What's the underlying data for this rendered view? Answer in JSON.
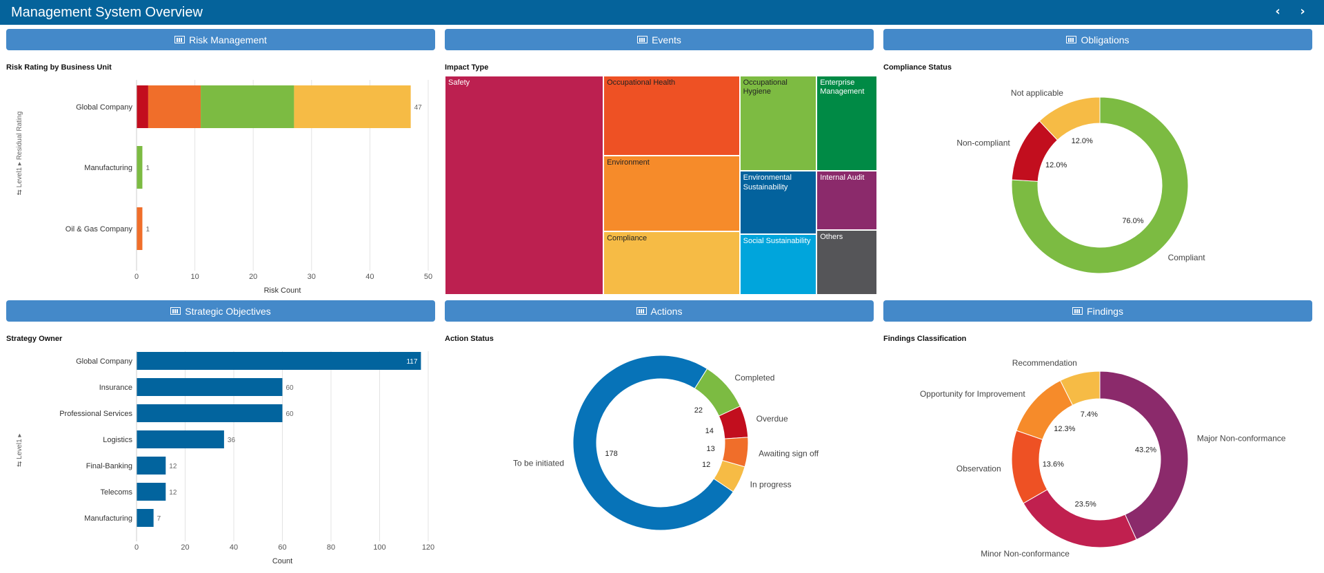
{
  "header": {
    "title": "Management System Overview",
    "prev_icon": "chevron-left",
    "next_icon": "chevron-right"
  },
  "colors": {
    "header": "#05639b",
    "button": "#4489c9"
  },
  "buttons": {
    "risk": "Risk Management",
    "events": "Events",
    "obligations": "Obligations",
    "strategic": "Strategic Objectives",
    "actions": "Actions",
    "findings": "Findings"
  },
  "chart_data": [
    {
      "id": "risk",
      "type": "bar",
      "orientation": "horizontal",
      "stacked": true,
      "title": "Risk Rating by Business Unit",
      "xlabel": "Risk Count",
      "ylabel": "Level1 ▸ Residual Rating",
      "xlim": [
        0,
        50
      ],
      "xticks": [
        "0",
        "10",
        "20",
        "30",
        "40",
        "50"
      ],
      "categories": [
        "Global Company",
        "Manufacturing",
        "Oil & Gas Company"
      ],
      "series": [
        {
          "color": "#c20e1e",
          "values": [
            2,
            0,
            0
          ]
        },
        {
          "color": "#f06e2a",
          "values": [
            9,
            0,
            1
          ]
        },
        {
          "color": "#7cbb42",
          "values": [
            16,
            1,
            0
          ]
        },
        {
          "color": "#f6bb45",
          "values": [
            20,
            0,
            0
          ]
        }
      ],
      "totals": [
        "47",
        "1",
        "1"
      ],
      "grid": true
    },
    {
      "id": "impact",
      "type": "treemap",
      "title": "Impact Type",
      "tiles": [
        {
          "label": "Safety",
          "color": "#bc2050",
          "text": "#fff"
        },
        {
          "label": "Occupational Health",
          "color": "#ee5124",
          "text": "#222"
        },
        {
          "label": "Environment",
          "color": "#f68b2a",
          "text": "#222"
        },
        {
          "label": "Compliance",
          "color": "#f6bb45",
          "text": "#222"
        },
        {
          "label": "Occupational Hygiene",
          "color": "#7dbb42",
          "text": "#222"
        },
        {
          "label": "Environmental Sustainability",
          "color": "#03629d",
          "text": "#fff"
        },
        {
          "label": "Social Sustainability",
          "color": "#00a5dc",
          "text": "#fff"
        },
        {
          "label": "Enterprise Management",
          "color": "#008a45",
          "text": "#fff"
        },
        {
          "label": "Internal Audit",
          "color": "#8b2a6b",
          "text": "#fff"
        },
        {
          "label": "Others",
          "color": "#555558",
          "text": "#fff"
        }
      ]
    },
    {
      "id": "compliance",
      "type": "pie",
      "donut": true,
      "title": "Compliance Status",
      "categories": [
        "Compliant",
        "Non-compliant",
        "Not applicable"
      ],
      "values": [
        76.0,
        12.0,
        12.0
      ],
      "value_labels": [
        "76.0%",
        "12.0%",
        "12.0%"
      ],
      "colors": [
        "#7cbb42",
        "#c20e1e",
        "#f6bb45"
      ]
    },
    {
      "id": "strategy",
      "type": "bar",
      "orientation": "horizontal",
      "title": "Strategy Owner",
      "xlabel": "Count",
      "ylabel": "Level1 ▸",
      "xlim": [
        0,
        120
      ],
      "xticks": [
        "0",
        "20",
        "40",
        "60",
        "80",
        "100",
        "120"
      ],
      "categories": [
        "Global Company",
        "Insurance",
        "Professional Services",
        "Logistics",
        "Final-Banking",
        "Telecoms",
        "Manufacturing"
      ],
      "values": [
        117,
        60,
        60,
        36,
        12,
        12,
        7
      ],
      "color": "#02649e",
      "grid": true
    },
    {
      "id": "actions",
      "type": "pie",
      "donut": true,
      "title": "Action Status",
      "categories": [
        "To be initiated",
        "Completed",
        "Overdue",
        "Awaiting sign off",
        "In progress"
      ],
      "values": [
        178,
        22,
        14,
        13,
        12
      ],
      "value_labels": [
        "178",
        "22",
        "14",
        "13",
        "12"
      ],
      "colors": [
        "#0773b8",
        "#7cbb42",
        "#c20e1e",
        "#f06e2a",
        "#f6bb45"
      ]
    },
    {
      "id": "findings",
      "type": "pie",
      "donut": true,
      "title": "Findings Classification",
      "categories": [
        "Major Non-conformance",
        "Minor Non-conformance",
        "Observation",
        "Opportunity for Improvement",
        "Recommendation"
      ],
      "values": [
        43.2,
        23.5,
        13.6,
        12.3,
        7.4
      ],
      "value_labels": [
        "43.2%",
        "23.5%",
        "13.6%",
        "12.3%",
        "7.4%"
      ],
      "colors": [
        "#8b2a6b",
        "#c0204f",
        "#ee5124",
        "#f68b2a",
        "#f6bb45"
      ]
    }
  ]
}
